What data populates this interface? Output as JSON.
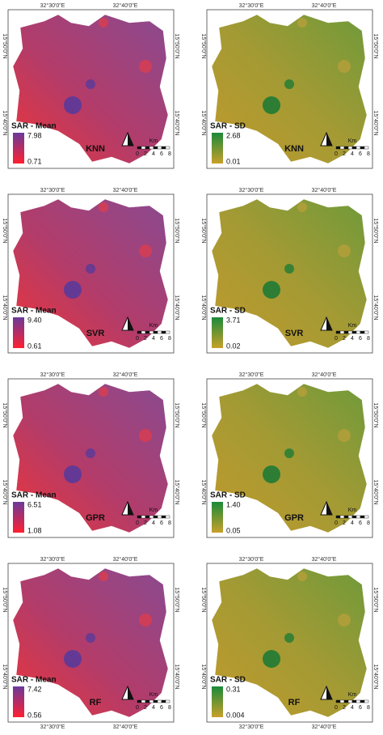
{
  "panels": [
    {
      "top_labels": [
        "32°30'0\"E",
        "32°40'0\"E"
      ],
      "side_labels": [
        "15°50'0\"N",
        "15°40'0\"N"
      ],
      "legend_title": "SAR - Mean",
      "legend_max": "7.98",
      "legend_min": "0.71",
      "model": "KNN",
      "scale_unit": "Km",
      "scale_ticks": [
        "0",
        "2",
        "4",
        "6",
        "8"
      ]
    },
    {
      "top_labels": [
        "32°30'0\"E",
        "32°40'0\"E"
      ],
      "side_labels": [
        "15°50'0\"N",
        "15°40'0\"N"
      ],
      "legend_title": "SAR - SD",
      "legend_max": "2.68",
      "legend_min": "0.01",
      "model": "KNN",
      "scale_unit": "Km",
      "scale_ticks": [
        "0",
        "2",
        "4",
        "6",
        "8"
      ]
    },
    {
      "top_labels": [
        "32°30'0\"E",
        "32°40'0\"E"
      ],
      "side_labels": [
        "15°50'0\"N",
        "15°40'0\"N"
      ],
      "legend_title": "SAR - Mean",
      "legend_max": "9.40",
      "legend_min": "0.61",
      "model": "SVR",
      "scale_unit": "Km",
      "scale_ticks": [
        "0",
        "2",
        "4",
        "6",
        "8"
      ]
    },
    {
      "top_labels": [
        "32°30'0\"E",
        "32°40'0\"E"
      ],
      "side_labels": [
        "15°50'0\"N",
        "15°40'0\"N"
      ],
      "legend_title": "SAR - SD",
      "legend_max": "3.71",
      "legend_min": "0.02",
      "model": "SVR",
      "scale_unit": "Km",
      "scale_ticks": [
        "0",
        "2",
        "4",
        "6",
        "8"
      ]
    },
    {
      "top_labels": [
        "32°30'0\"E",
        "32°40'0\"E"
      ],
      "side_labels": [
        "15°50'0\"N",
        "15°40'0\"N"
      ],
      "legend_title": "SAR - Mean",
      "legend_max": "6.51",
      "legend_min": "1.08",
      "model": "GPR",
      "scale_unit": "Km",
      "scale_ticks": [
        "0",
        "2",
        "4",
        "6",
        "8"
      ]
    },
    {
      "top_labels": [
        "32°30'0\"E",
        "32°40'0\"E"
      ],
      "side_labels": [
        "15°50'0\"N",
        "15°40'0\"N"
      ],
      "legend_title": "SAR - SD",
      "legend_max": "1.40",
      "legend_min": "0.05",
      "model": "GPR",
      "scale_unit": "Km",
      "scale_ticks": [
        "0",
        "2",
        "4",
        "6",
        "8"
      ]
    },
    {
      "top_labels": [
        "32°30'0\"E",
        "32°40'0\"E"
      ],
      "side_labels": [
        "15°50'0\"N",
        "15°40'0\"N"
      ],
      "legend_title": "SAR - Mean",
      "legend_max": "7.42",
      "legend_min": "0.56",
      "model": "RF",
      "scale_unit": "Km",
      "scale_ticks": [
        "0",
        "2",
        "4",
        "6",
        "8"
      ],
      "bottom_labels": [
        "32°30'0\"E",
        "32°40'0\"E"
      ]
    },
    {
      "top_labels": [
        "32°30'0\"E",
        "32°40'0\"E"
      ],
      "side_labels": [
        "15°50'0\"N",
        "15°40'0\"N"
      ],
      "legend_title": "SAR - SD",
      "legend_max": "0.31",
      "legend_min": "0.004",
      "model": "RF",
      "scale_unit": "Km",
      "scale_ticks": [
        "0",
        "2",
        "4",
        "6",
        "8"
      ],
      "bottom_labels": [
        "32°30'0\"E",
        "32°40'0\"E"
      ]
    }
  ]
}
